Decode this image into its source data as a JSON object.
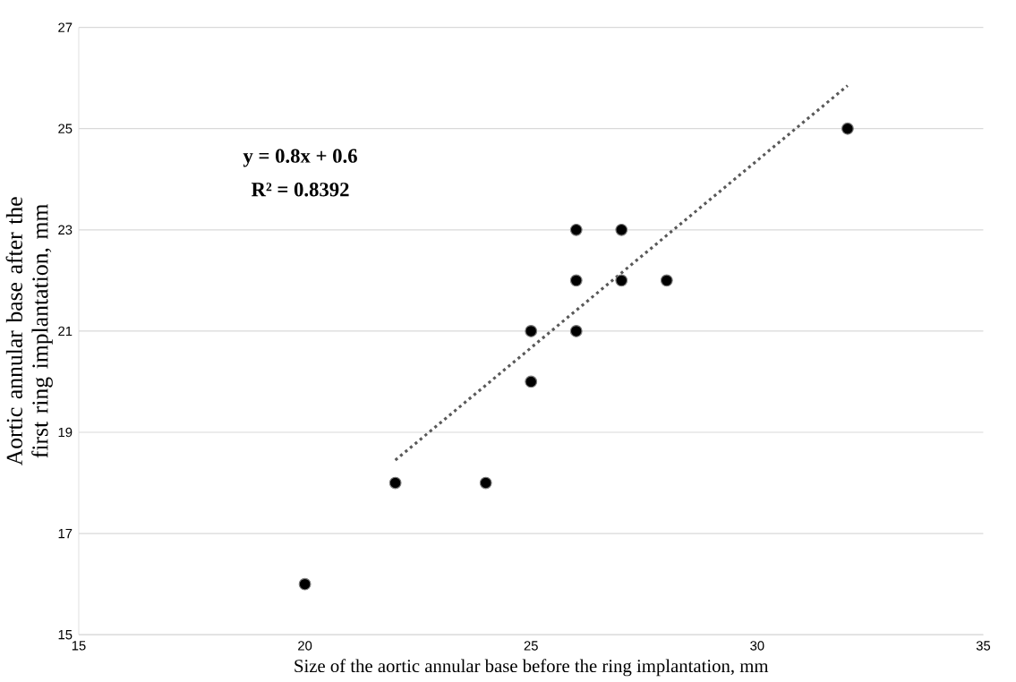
{
  "chart_data": {
    "type": "scatter",
    "xlabel": "Size of the aortic annular base before the ring implantation, mm",
    "ylabel": "Aortic annular base after the first ring implantation, mm",
    "annotations": [
      "**y = 0.8x + 0.6**",
      "**R² = 0.8392**"
    ],
    "series": [
      {
        "color": "#000000",
        "marker": "circle",
        "x": [
          20,
          22,
          24,
          25,
          25,
          26,
          26,
          26,
          27,
          27,
          28,
          32
        ],
        "values": [
          16,
          18,
          18,
          20,
          21,
          21,
          22,
          23,
          22,
          23,
          22,
          25
        ]
      },
      {
        "type": "line",
        "color": "#595959",
        "line_style": "dotted",
        "marker": "none",
        "x": [
          22,
          32
        ],
        "values": [
          18.45,
          25.85
        ]
      }
    ],
    "xlim": [
      15,
      35
    ],
    "xticks": [
      15,
      20,
      25,
      30,
      35
    ],
    "ylim": [
      15,
      27
    ],
    "yticks": [
      15,
      17,
      19,
      21,
      23,
      25,
      27
    ],
    "grid": "y"
  }
}
